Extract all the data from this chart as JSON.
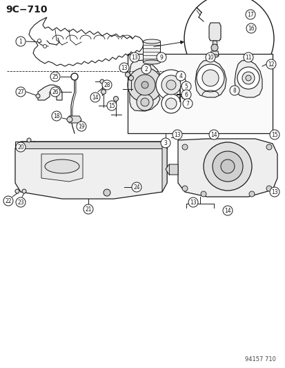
{
  "bg_color": "#ffffff",
  "fig_width": 4.14,
  "fig_height": 5.33,
  "dpi": 100,
  "title": "9C−710",
  "watermark": "94157 710",
  "lc": "#1a1a1a",
  "lc_light": "#666666"
}
